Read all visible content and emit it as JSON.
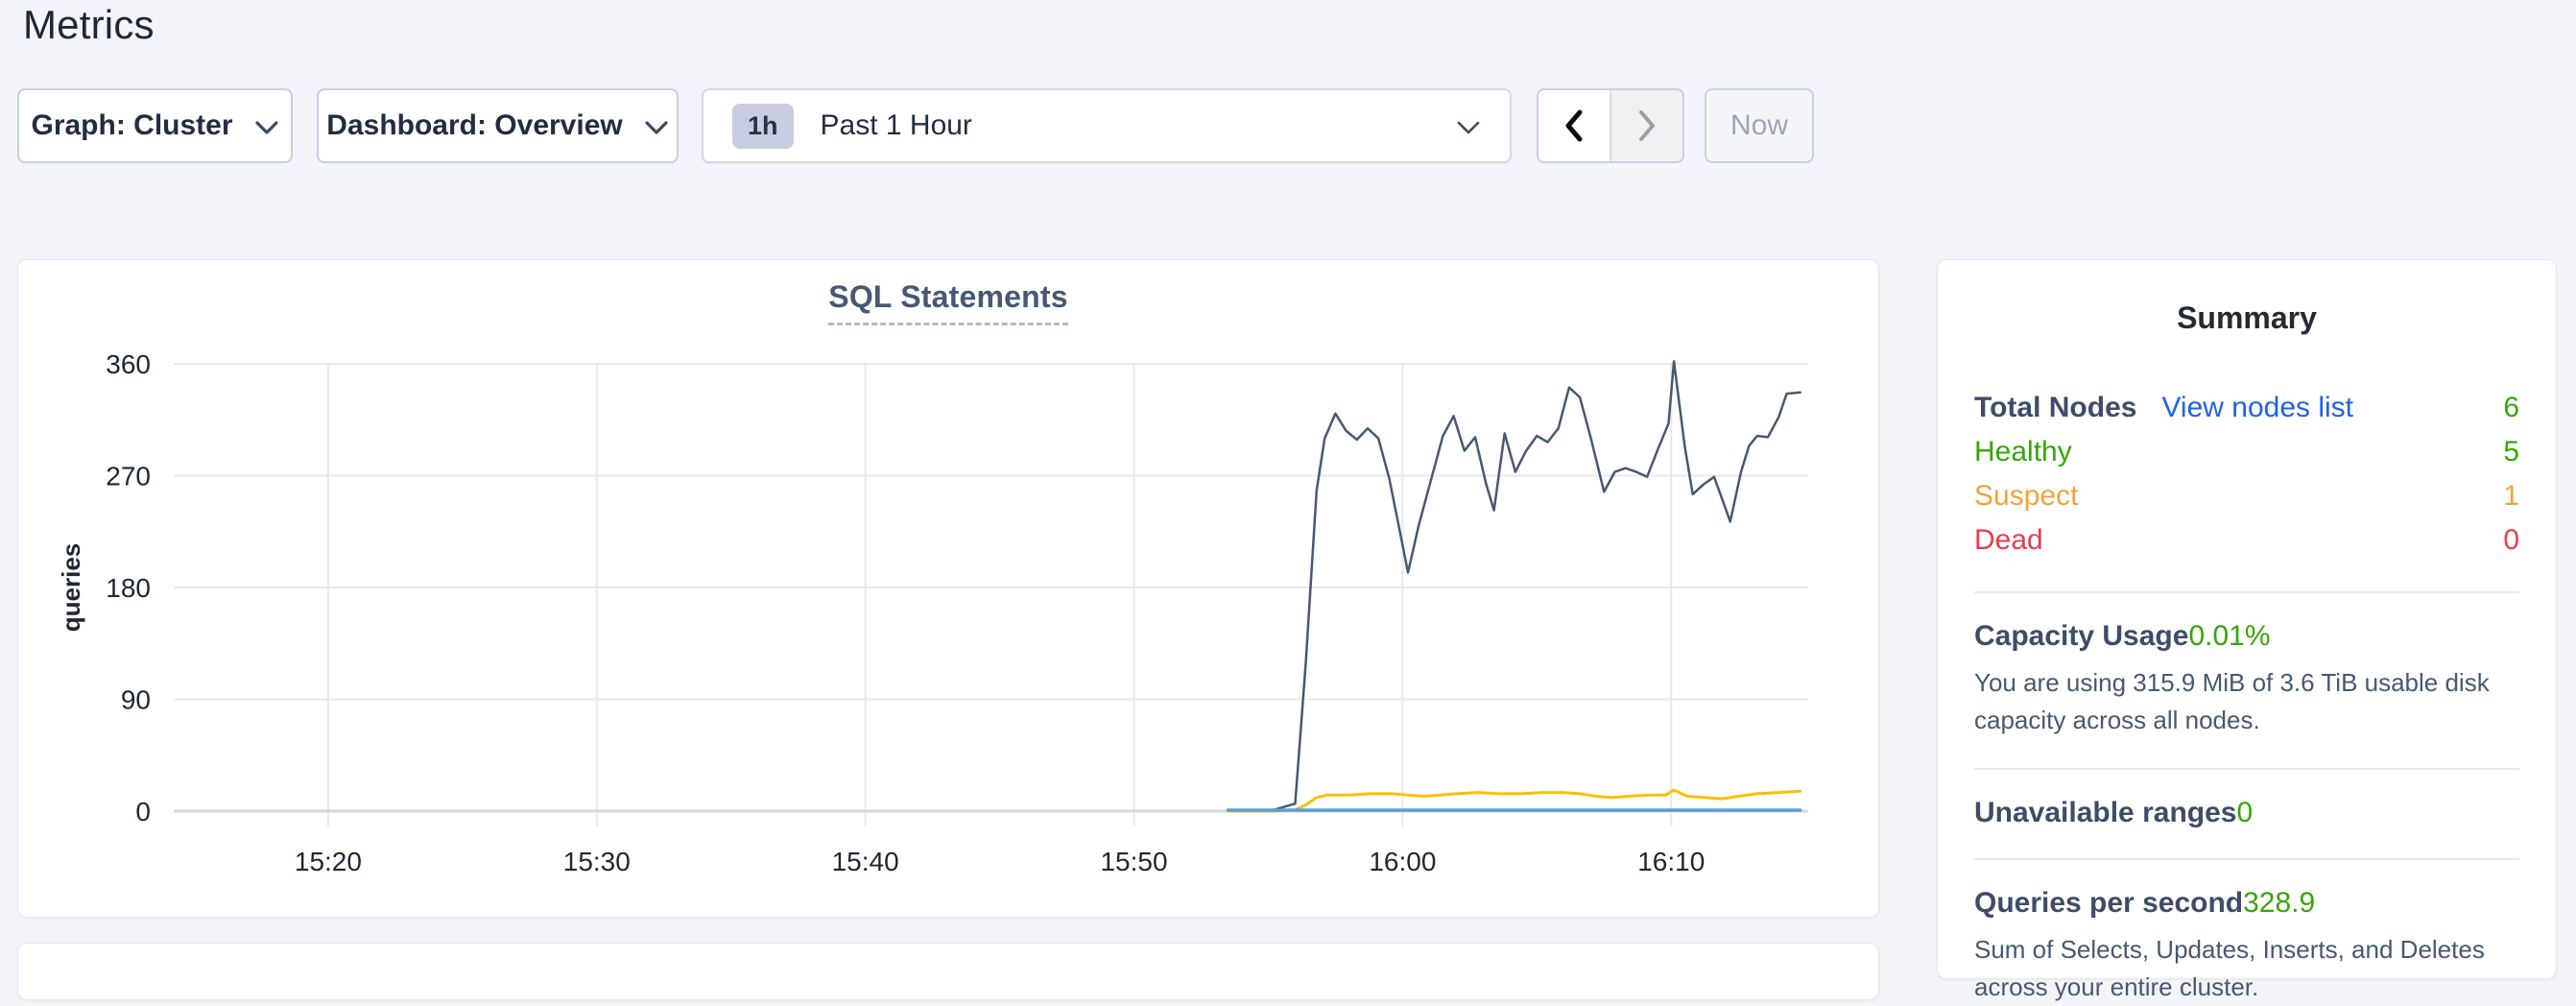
{
  "page": {
    "title": "Metrics"
  },
  "toolbar": {
    "graph_selector_label": "Graph: Cluster",
    "dashboard_selector_label": "Dashboard: Overview",
    "time_window": {
      "badge": "1h",
      "label": "Past 1 Hour"
    },
    "now_label": "Now"
  },
  "chart_data": {
    "type": "line",
    "title": "SQL Statements",
    "ylabel": "queries",
    "ylim": [
      0,
      360
    ],
    "y_ticks": [
      0,
      90,
      180,
      270,
      360
    ],
    "x_unit": "minutes after 15:20",
    "x_ticks": [
      {
        "m": 0,
        "label": "15:20"
      },
      {
        "m": 10,
        "label": "15:30"
      },
      {
        "m": 20,
        "label": "15:40"
      },
      {
        "m": 30,
        "label": "15:50"
      },
      {
        "m": 40,
        "label": "16:00"
      },
      {
        "m": 50,
        "label": "16:10"
      }
    ],
    "grid": true,
    "legend": "none",
    "series": [
      {
        "name": "dark-slate-line",
        "color": "#475872",
        "width": 2.5,
        "points": [
          [
            33.5,
            0
          ],
          [
            34.3,
            1
          ],
          [
            35.2,
            1
          ],
          [
            36.0,
            6
          ],
          [
            36.4,
            120
          ],
          [
            36.8,
            258
          ],
          [
            37.1,
            300
          ],
          [
            37.5,
            320
          ],
          [
            37.9,
            306
          ],
          [
            38.3,
            299
          ],
          [
            38.7,
            308
          ],
          [
            39.1,
            300
          ],
          [
            39.5,
            268
          ],
          [
            39.9,
            225
          ],
          [
            40.2,
            192
          ],
          [
            40.6,
            230
          ],
          [
            41.0,
            262
          ],
          [
            41.5,
            302
          ],
          [
            41.9,
            318
          ],
          [
            42.3,
            290
          ],
          [
            42.7,
            301
          ],
          [
            43.1,
            264
          ],
          [
            43.4,
            242
          ],
          [
            43.8,
            304
          ],
          [
            44.2,
            273
          ],
          [
            44.6,
            290
          ],
          [
            45.0,
            302
          ],
          [
            45.4,
            297
          ],
          [
            45.8,
            308
          ],
          [
            46.2,
            341
          ],
          [
            46.6,
            333
          ],
          [
            47.0,
            301
          ],
          [
            47.5,
            257
          ],
          [
            47.9,
            273
          ],
          [
            48.3,
            276
          ],
          [
            48.7,
            273
          ],
          [
            49.1,
            269
          ],
          [
            49.5,
            291
          ],
          [
            49.9,
            312
          ],
          [
            50.1,
            362
          ],
          [
            50.5,
            294
          ],
          [
            50.8,
            255
          ],
          [
            51.2,
            263
          ],
          [
            51.6,
            269
          ],
          [
            51.9,
            251
          ],
          [
            52.2,
            233
          ],
          [
            52.6,
            273
          ],
          [
            52.9,
            294
          ],
          [
            53.2,
            302
          ],
          [
            53.6,
            301
          ],
          [
            54.0,
            317
          ],
          [
            54.3,
            336
          ],
          [
            54.8,
            337
          ]
        ]
      },
      {
        "name": "yellow-line",
        "color": "#fdc008",
        "width": 3,
        "points": [
          [
            33.5,
            0
          ],
          [
            35.0,
            0
          ],
          [
            36.0,
            1
          ],
          [
            36.4,
            5
          ],
          [
            36.8,
            11
          ],
          [
            37.2,
            13
          ],
          [
            38.0,
            13
          ],
          [
            38.8,
            14
          ],
          [
            39.6,
            14
          ],
          [
            40.2,
            13
          ],
          [
            40.8,
            12
          ],
          [
            41.4,
            13
          ],
          [
            42.0,
            14
          ],
          [
            42.8,
            15
          ],
          [
            43.6,
            14
          ],
          [
            44.4,
            14
          ],
          [
            45.2,
            15
          ],
          [
            46.0,
            15
          ],
          [
            46.6,
            14
          ],
          [
            47.2,
            12
          ],
          [
            47.8,
            11
          ],
          [
            48.4,
            12
          ],
          [
            49.2,
            13
          ],
          [
            49.8,
            13
          ],
          [
            50.1,
            17
          ],
          [
            50.6,
            12
          ],
          [
            51.2,
            11
          ],
          [
            51.9,
            10
          ],
          [
            52.5,
            12
          ],
          [
            53.2,
            14
          ],
          [
            54.0,
            15
          ],
          [
            54.8,
            16
          ]
        ]
      },
      {
        "name": "light-blue-line",
        "color": "#5a9fd6",
        "width": 3.5,
        "points": [
          [
            33.5,
            0.8
          ],
          [
            54.8,
            0.8
          ]
        ]
      }
    ]
  },
  "summary": {
    "title": "Summary",
    "nodes": {
      "total_label": "Total Nodes",
      "view_link": "View nodes list",
      "total_value": "6",
      "total_value_color": "#36a608",
      "rows": [
        {
          "label": "Healthy",
          "value": "5",
          "color": "#36a608"
        },
        {
          "label": "Suspect",
          "value": "1",
          "color": "#f2a43b"
        },
        {
          "label": "Dead",
          "value": "0",
          "color": "#ee3a4c"
        }
      ]
    },
    "capacity": {
      "label": "Capacity Usage",
      "value": "0.01%",
      "value_color": "#36a608",
      "description": "You are using 315.9 MiB of 3.6 TiB usable disk capacity across all nodes."
    },
    "unavailable": {
      "label": "Unavailable ranges",
      "value": "0",
      "value_color": "#36a608"
    },
    "qps": {
      "label": "Queries per second",
      "value": "328.9",
      "value_color": "#36a608",
      "description": "Sum of Selects, Updates, Inserts, and Deletes across your entire cluster."
    }
  }
}
